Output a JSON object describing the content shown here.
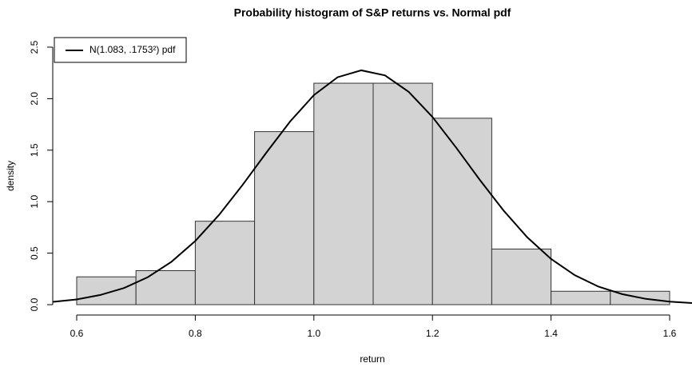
{
  "chart_data": {
    "type": "histogram",
    "title": "Probability histogram of S&P returns vs. Normal pdf",
    "xlabel": "return",
    "ylabel": "density",
    "bins": [
      0.6,
      0.7,
      0.8,
      0.9,
      1.0,
      1.1,
      1.2,
      1.3,
      1.4,
      1.5,
      1.6
    ],
    "values": [
      0.27,
      0.33,
      0.81,
      1.68,
      2.15,
      2.15,
      1.81,
      0.54,
      0.13,
      0.13
    ],
    "color": "#d3d3d3",
    "edge_color": "#333333",
    "curve": {
      "name": "N(1.083, .1753²) pdf",
      "color": "#000000",
      "x": [
        0.56,
        0.6,
        0.64,
        0.68,
        0.72,
        0.76,
        0.8,
        0.84,
        0.88,
        0.92,
        0.96,
        1.0,
        1.04,
        1.08,
        1.12,
        1.16,
        1.2,
        1.24,
        1.28,
        1.32,
        1.36,
        1.4,
        1.44,
        1.48,
        1.52,
        1.56,
        1.6,
        1.64
      ],
      "values": [
        0.027,
        0.051,
        0.094,
        0.162,
        0.267,
        0.417,
        0.618,
        0.871,
        1.164,
        1.477,
        1.779,
        2.034,
        2.208,
        2.275,
        2.226,
        2.066,
        1.822,
        1.524,
        1.21,
        0.913,
        0.653,
        0.444,
        0.286,
        0.175,
        0.102,
        0.056,
        0.029,
        0.015
      ]
    },
    "xlim": [
      0.56,
      1.64
    ],
    "ylim": [
      -0.1,
      2.6
    ],
    "xticks": [
      0.6,
      0.8,
      {
        "value": 1.0,
        "label": "1.0"
      },
      1.2,
      1.4,
      1.6
    ],
    "yticks": [
      {
        "value": 0,
        "label": "0.0"
      },
      0.5,
      {
        "value": 1.0,
        "label": "1.0"
      },
      1.5,
      {
        "value": 2.0,
        "label": "2.0"
      },
      2.5
    ],
    "legend": "top-left"
  }
}
